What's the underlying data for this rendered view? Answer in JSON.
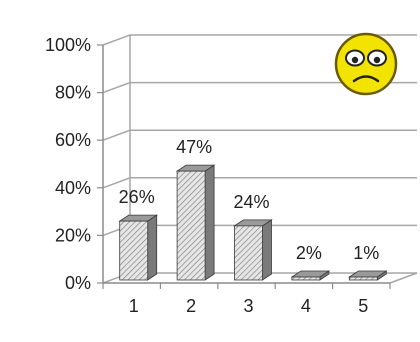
{
  "chart_data": {
    "type": "bar",
    "categories": [
      "1",
      "2",
      "3",
      "4",
      "5"
    ],
    "values": [
      26,
      47,
      24,
      2,
      1
    ],
    "data_labels": [
      "26%",
      "47%",
      "24%",
      "2%",
      "1%"
    ],
    "y_ticks": [
      "0%",
      "20%",
      "40%",
      "60%",
      "80%",
      "100%"
    ],
    "ylim": [
      0,
      100
    ],
    "grid": true,
    "style": "3d-column-hatched",
    "colors": {
      "bar_front": "#d9d9d9",
      "bar_top": "#9a9a9a",
      "bar_side": "#7a7a7a",
      "grid": "#a6a6a6",
      "axis": "#8c8c8c",
      "emoji_face": "#f2e400",
      "emoji_outline": "#6b5a00"
    },
    "decoration": "sad-face-emoji"
  }
}
